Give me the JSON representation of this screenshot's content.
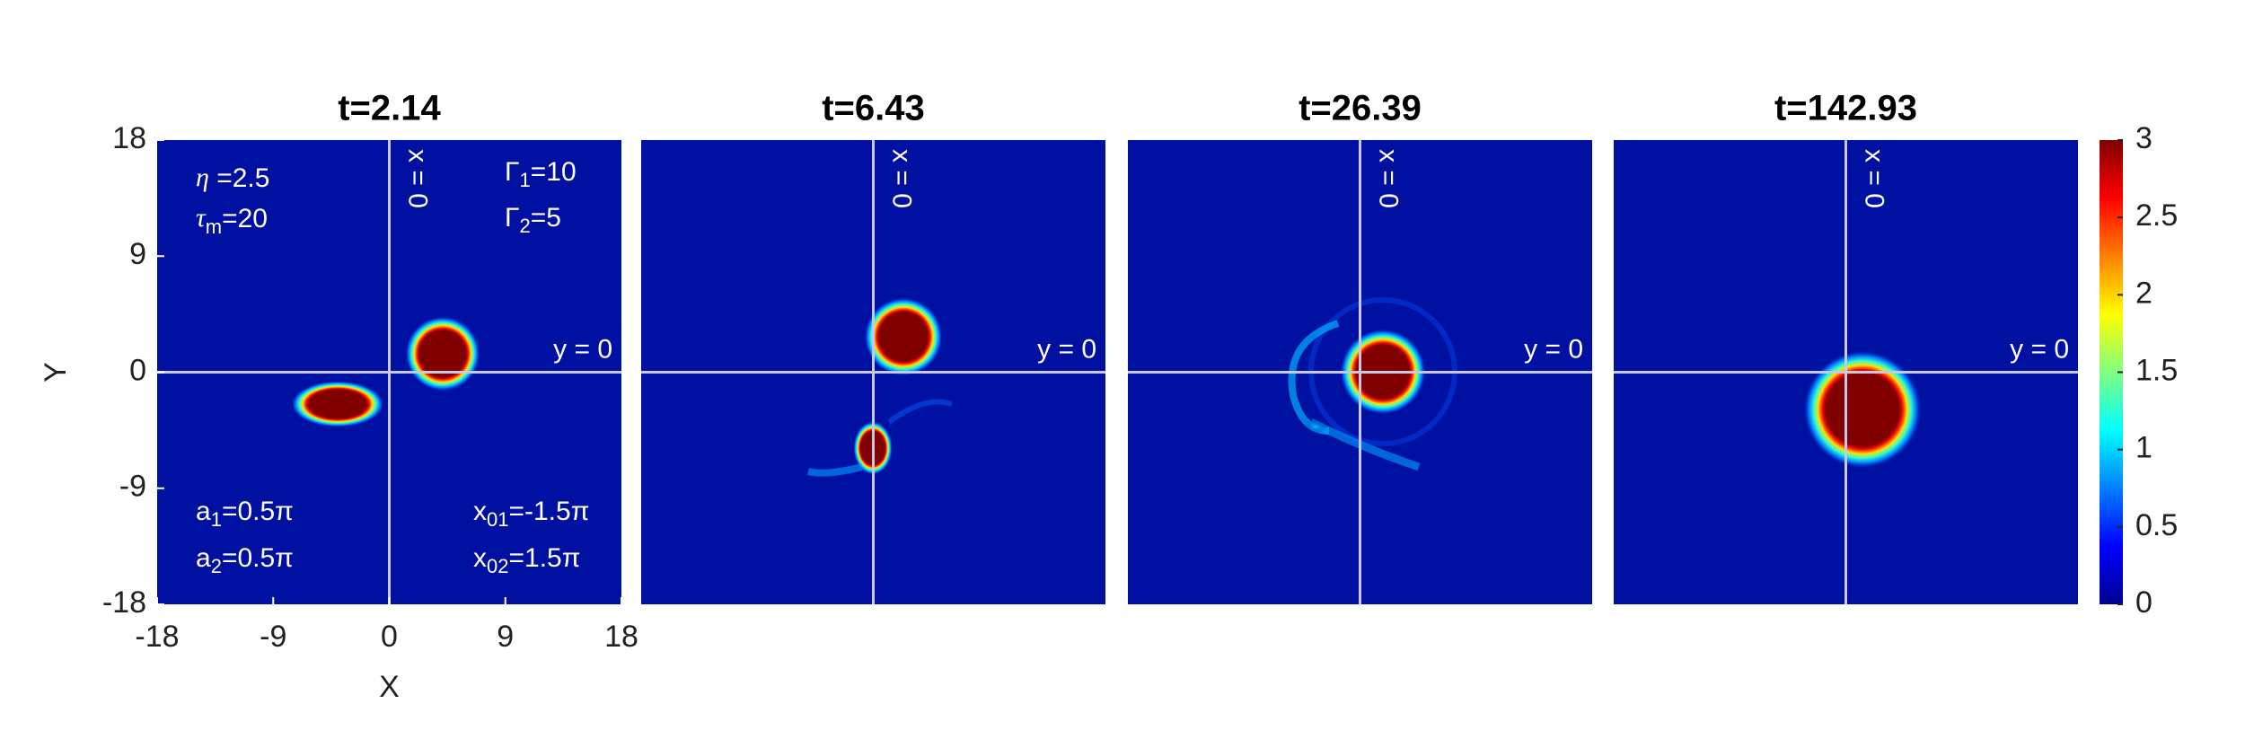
{
  "chart_data": [
    {
      "type": "heatmap",
      "title": "t=2.14",
      "xlabel": "X",
      "ylabel": "Y",
      "xlim": [
        -18,
        18
      ],
      "ylim": [
        -18,
        18
      ],
      "xticks": [
        -18,
        -9,
        0,
        9,
        18
      ],
      "yticks": [
        -18,
        -9,
        0,
        9,
        18
      ],
      "vline": 0,
      "hline": 0,
      "vline_label": "x = 0",
      "hline_label": "y = 0",
      "annotations": [
        {
          "base": "η",
          "rest": " =2.5"
        },
        {
          "base": "τ",
          "sub": "m",
          "rest": "=20"
        },
        {
          "base": "Γ",
          "sub": "1",
          "rest": "=10"
        },
        {
          "base": "Γ",
          "sub": "2",
          "rest": "=5"
        },
        {
          "base": "a",
          "sub": "1",
          "rest": "=0.5π"
        },
        {
          "base": "a",
          "sub": "2",
          "rest": "=0.5π"
        },
        {
          "base": "x",
          "sub": "01",
          "rest": "=-1.5π"
        },
        {
          "base": "x",
          "sub": "02",
          "rest": "=1.5π"
        }
      ]
    },
    {
      "type": "heatmap",
      "title": "t=6.43",
      "xlim": [
        -18,
        18
      ],
      "ylim": [
        -18,
        18
      ],
      "vline": 0,
      "hline": 0,
      "vline_label": "x = 0",
      "hline_label": "y = 0"
    },
    {
      "type": "heatmap",
      "title": "t=26.39",
      "xlim": [
        -18,
        18
      ],
      "ylim": [
        -18,
        18
      ],
      "vline": 0,
      "hline": 0,
      "vline_label": "x = 0",
      "hline_label": "y = 0"
    },
    {
      "type": "heatmap",
      "title": "t=142.93",
      "xlim": [
        -18,
        18
      ],
      "ylim": [
        -18,
        18
      ],
      "vline": 0,
      "hline": 0,
      "vline_label": "x = 0",
      "hline_label": "y = 0",
      "colormap": "jet",
      "clim": [
        0,
        3
      ],
      "cticks": [
        0,
        0.5,
        1,
        1.5,
        2,
        2.5,
        3
      ]
    }
  ]
}
